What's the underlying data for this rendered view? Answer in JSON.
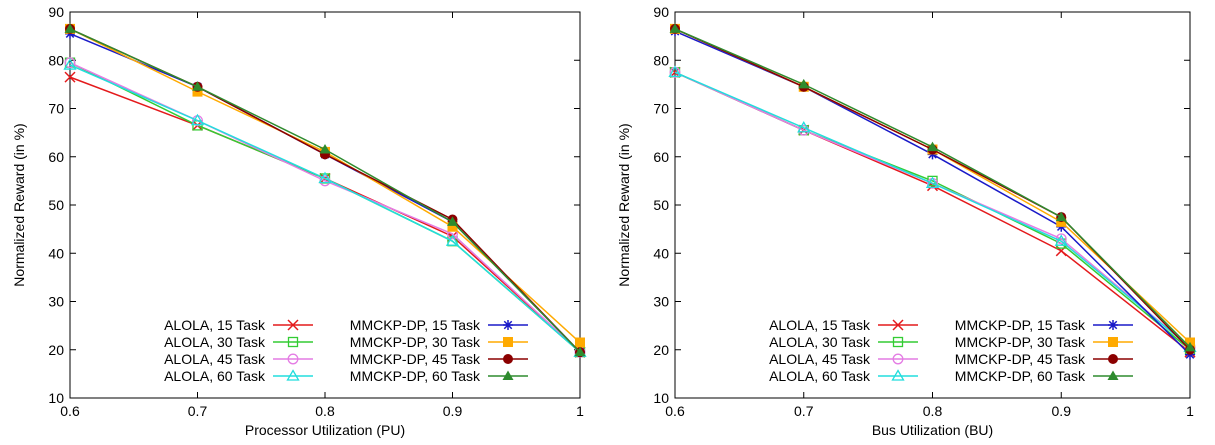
{
  "chart_data": [
    {
      "type": "line",
      "title": "",
      "xlabel": "Processor Utilization (PU)",
      "ylabel": "Normalized Reward (in %)",
      "xlim": [
        0.6,
        1.0
      ],
      "ylim": [
        10,
        90
      ],
      "xticks": [
        "0.6",
        "0.7",
        "0.8",
        "0.9",
        "1"
      ],
      "yticks": [
        "10",
        "20",
        "30",
        "40",
        "50",
        "60",
        "70",
        "80",
        "90"
      ],
      "grid": false,
      "legend_position": "bottom",
      "x": [
        0.6,
        0.7,
        0.8,
        0.9,
        1.0
      ],
      "series": [
        {
          "name": "ALOLA, 15 Task",
          "color": "#e41a1c",
          "marker": "x",
          "values": [
            76.5,
            66.5,
            55.5,
            43.5,
            19.5
          ]
        },
        {
          "name": "ALOLA, 30 Task",
          "color": "#33cc33",
          "marker": "open-square",
          "values": [
            79.5,
            66.5,
            55.5,
            42.5,
            19.5
          ]
        },
        {
          "name": "ALOLA, 45 Task",
          "color": "#e47ce4",
          "marker": "open-circle",
          "values": [
            79.5,
            67.5,
            55.0,
            44.0,
            19.5
          ]
        },
        {
          "name": "ALOLA, 60 Task",
          "color": "#22dddd",
          "marker": "open-triangle",
          "values": [
            79.0,
            67.5,
            55.5,
            42.5,
            19.5
          ]
        },
        {
          "name": "MMCKP-DP, 15 Task",
          "color": "#1a1ac8",
          "marker": "star",
          "values": [
            85.5,
            74.5,
            60.5,
            46.5,
            19.5
          ]
        },
        {
          "name": "MMCKP-DP, 30 Task",
          "color": "#ffaa00",
          "marker": "filled-square",
          "values": [
            86.5,
            73.5,
            61.0,
            45.5,
            21.5
          ]
        },
        {
          "name": "MMCKP-DP, 45 Task",
          "color": "#8b0000",
          "marker": "filled-circle",
          "values": [
            86.5,
            74.5,
            60.5,
            47.0,
            19.5
          ]
        },
        {
          "name": "MMCKP-DP, 60 Task",
          "color": "#2e8b2e",
          "marker": "filled-triangle",
          "values": [
            86.5,
            74.5,
            61.5,
            46.5,
            19.5
          ]
        }
      ]
    },
    {
      "type": "line",
      "title": "",
      "xlabel": "Bus Utilization (BU)",
      "ylabel": "Normalized Reward (in %)",
      "xlim": [
        0.6,
        1.0
      ],
      "ylim": [
        10,
        90
      ],
      "xticks": [
        "0.6",
        "0.7",
        "0.8",
        "0.9",
        "1"
      ],
      "yticks": [
        "10",
        "20",
        "30",
        "40",
        "50",
        "60",
        "70",
        "80",
        "90"
      ],
      "grid": false,
      "legend_position": "bottom",
      "x": [
        0.6,
        0.7,
        0.8,
        0.9,
        1.0
      ],
      "series": [
        {
          "name": "ALOLA, 15 Task",
          "color": "#e41a1c",
          "marker": "x",
          "values": [
            77.5,
            65.5,
            54.0,
            40.5,
            19.5
          ]
        },
        {
          "name": "ALOLA, 30 Task",
          "color": "#33cc33",
          "marker": "open-square",
          "values": [
            77.5,
            65.5,
            55.0,
            42.0,
            20.0
          ]
        },
        {
          "name": "ALOLA, 45 Task",
          "color": "#e47ce4",
          "marker": "open-circle",
          "values": [
            77.5,
            65.5,
            54.5,
            43.0,
            20.5
          ]
        },
        {
          "name": "ALOLA, 60 Task",
          "color": "#22dddd",
          "marker": "open-triangle",
          "values": [
            77.5,
            66.0,
            54.5,
            42.5,
            20.5
          ]
        },
        {
          "name": "MMCKP-DP, 15 Task",
          "color": "#1a1ac8",
          "marker": "star",
          "values": [
            86.0,
            74.5,
            60.5,
            45.5,
            19.0
          ]
        },
        {
          "name": "MMCKP-DP, 30 Task",
          "color": "#ffaa00",
          "marker": "filled-square",
          "values": [
            86.5,
            74.5,
            61.5,
            46.5,
            21.5
          ]
        },
        {
          "name": "MMCKP-DP, 45 Task",
          "color": "#8b0000",
          "marker": "filled-circle",
          "values": [
            86.5,
            74.5,
            61.5,
            47.5,
            20.0
          ]
        },
        {
          "name": "MMCKP-DP, 60 Task",
          "color": "#2e8b2e",
          "marker": "filled-triangle",
          "values": [
            86.5,
            75.0,
            62.0,
            47.5,
            20.5
          ]
        }
      ]
    }
  ]
}
